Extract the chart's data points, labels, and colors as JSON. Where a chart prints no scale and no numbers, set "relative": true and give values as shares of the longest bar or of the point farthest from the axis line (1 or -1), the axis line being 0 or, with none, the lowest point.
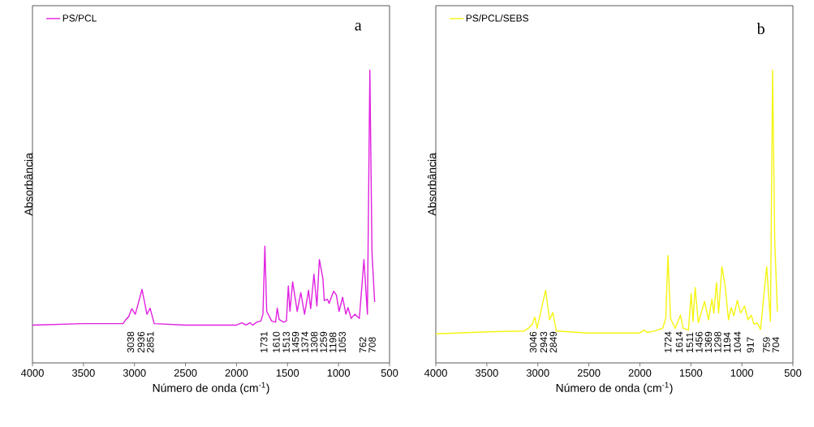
{
  "chart_data": [
    {
      "type": "line",
      "relative": true,
      "xlabel": "Número de onda (cm$^{-1}$)",
      "ylabel": "Absorbância",
      "xlim": [
        4000,
        500
      ],
      "xticks": [
        4000,
        3500,
        3000,
        2500,
        2000,
        1500,
        1000,
        500
      ],
      "legend": "top left",
      "line_style": "solid",
      "annotations": [
        "a",
        "3038",
        "2936",
        "2851",
        "1731",
        "1610",
        "1513",
        "1459",
        "1374",
        "1308",
        "1259",
        "1198",
        "1053",
        "762",
        "708"
      ],
      "x": [
        4000,
        3500,
        3111,
        3085,
        3058,
        3026,
        2992,
        2926,
        2878,
        2847,
        2807,
        2500,
        2000,
        1947,
        1907,
        1868,
        1841,
        1802,
        1762,
        1741,
        1722,
        1704,
        1656,
        1617,
        1601,
        1582,
        1537,
        1511,
        1492,
        1476,
        1450,
        1405,
        1370,
        1333,
        1294,
        1273,
        1241,
        1212,
        1188,
        1153,
        1140,
        1108,
        1093,
        1048,
        1021,
        995,
        960,
        928,
        907,
        876,
        841,
        796,
        751,
        717,
        693,
        672,
        646
      ],
      "series": [
        {
          "name": "PS/PCL",
          "color": "#e020e0",
          "values": [
            0.129,
            0.134,
            0.134,
            0.148,
            0.157,
            0.185,
            0.166,
            0.251,
            0.166,
            0.187,
            0.134,
            0.129,
            0.129,
            0.137,
            0.129,
            0.137,
            0.129,
            0.139,
            0.143,
            0.166,
            0.399,
            0.176,
            0.143,
            0.139,
            0.187,
            0.148,
            0.139,
            0.143,
            0.263,
            0.176,
            0.277,
            0.176,
            0.24,
            0.166,
            0.248,
            0.185,
            0.303,
            0.194,
            0.353,
            0.287,
            0.213,
            0.217,
            0.203,
            0.245,
            0.231,
            0.176,
            0.224,
            0.166,
            0.189,
            0.152,
            0.166,
            0.152,
            0.353,
            0.166,
            1.0,
            0.374,
            0.208
          ]
        }
      ]
    },
    {
      "type": "line",
      "relative": true,
      "xlabel": "Número de onda (cm$^{-1}$)",
      "ylabel": "Absorbância",
      "xlim": [
        4000,
        500
      ],
      "xticks": [
        4000,
        3500,
        3000,
        2500,
        2000,
        1500,
        1000,
        500
      ],
      "legend": "top left",
      "line_style": "solid",
      "annotations": [
        "b",
        "3046",
        "2943",
        "2849",
        "1724",
        "1614",
        "1511",
        "1456",
        "1369",
        "1298",
        "1194",
        "1044",
        "917",
        "759",
        "704"
      ],
      "x": [
        4000,
        3500,
        3134,
        3094,
        3055,
        3029,
        3008,
        2924,
        2885,
        2853,
        2819,
        2505,
        2003,
        1955,
        1929,
        1851,
        1777,
        1746,
        1725,
        1699,
        1654,
        1602,
        1576,
        1524,
        1497,
        1479,
        1458,
        1427,
        1366,
        1327,
        1293,
        1275,
        1249,
        1228,
        1196,
        1165,
        1131,
        1105,
        1079,
        1045,
        1013,
        974,
        940,
        908,
        882,
        851,
        817,
        757,
        720,
        699,
        678,
        652
      ],
      "series": [
        {
          "name": "PS/PCL/SEBS",
          "color": "#f5f510",
          "values": [
            0.099,
            0.106,
            0.109,
            0.118,
            0.132,
            0.156,
            0.118,
            0.248,
            0.147,
            0.172,
            0.109,
            0.102,
            0.102,
            0.112,
            0.104,
            0.109,
            0.118,
            0.151,
            0.367,
            0.151,
            0.118,
            0.163,
            0.118,
            0.112,
            0.237,
            0.142,
            0.257,
            0.137,
            0.21,
            0.147,
            0.218,
            0.17,
            0.274,
            0.17,
            0.329,
            0.265,
            0.147,
            0.189,
            0.161,
            0.213,
            0.17,
            0.194,
            0.147,
            0.163,
            0.132,
            0.137,
            0.114,
            0.329,
            0.142,
            1.0,
            0.416,
            0.175
          ]
        }
      ]
    }
  ]
}
